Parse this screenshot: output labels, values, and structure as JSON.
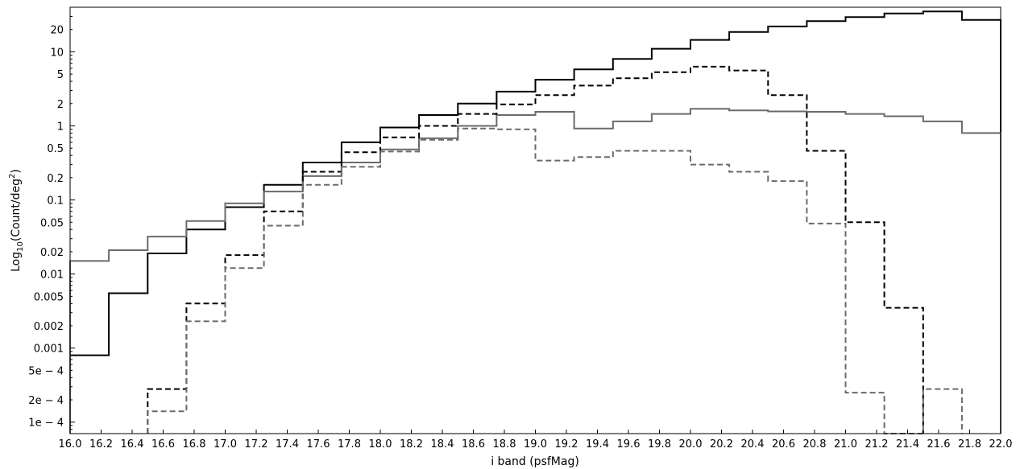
{
  "chart_data": {
    "type": "line",
    "step": true,
    "title": "",
    "xlabel": "i band (psfMag)",
    "ylabel": {
      "main": "Log",
      "sub": "10",
      "paren_open": "(Count/deg",
      "sup": "2",
      "paren_close": ")"
    },
    "xlim": [
      16.0,
      22.0
    ],
    "ylim": [
      7e-05,
      40
    ],
    "yscale": "log",
    "grid": false,
    "legend": "none",
    "x_ticks": [
      "16.0",
      "16.2",
      "16.4",
      "16.6",
      "16.8",
      "17.0",
      "17.2",
      "17.4",
      "17.6",
      "17.8",
      "18.0",
      "18.2",
      "18.4",
      "18.6",
      "18.8",
      "19.0",
      "19.2",
      "19.4",
      "19.6",
      "19.8",
      "20.0",
      "20.2",
      "20.4",
      "20.6",
      "20.8",
      "21.0",
      "21.2",
      "21.4",
      "21.6",
      "21.8",
      "22.0"
    ],
    "y_ticks": [
      {
        "value": 20,
        "label": "20"
      },
      {
        "value": 10,
        "label": "10"
      },
      {
        "value": 5,
        "label": "5"
      },
      {
        "value": 2,
        "label": "2"
      },
      {
        "value": 1,
        "label": "1"
      },
      {
        "value": 0.5,
        "label": "0.5"
      },
      {
        "value": 0.2,
        "label": "0.2"
      },
      {
        "value": 0.1,
        "label": "0.1"
      },
      {
        "value": 0.05,
        "label": "0.05"
      },
      {
        "value": 0.02,
        "label": "0.02"
      },
      {
        "value": 0.01,
        "label": "0.01"
      },
      {
        "value": 0.005,
        "label": "0.005"
      },
      {
        "value": 0.002,
        "label": "0.002"
      },
      {
        "value": 0.001,
        "label": "0.001"
      },
      {
        "value": 0.0005,
        "label": "5e − 4"
      },
      {
        "value": 0.0002,
        "label": "2e − 4"
      },
      {
        "value": 0.0001,
        "label": "1e − 4"
      }
    ],
    "bin_edges": [
      16.0,
      16.25,
      16.5,
      16.75,
      17.0,
      17.25,
      17.5,
      17.75,
      18.0,
      18.25,
      18.5,
      18.75,
      19.0,
      19.25,
      19.5,
      19.75,
      20.0,
      20.25,
      20.5,
      20.75,
      21.0,
      21.25,
      21.5,
      21.75,
      22.0
    ],
    "series": [
      {
        "style": "solid",
        "color": "#000000",
        "values": [
          0.0008,
          0.0055,
          0.019,
          0.04,
          0.08,
          0.16,
          0.32,
          0.6,
          0.95,
          1.4,
          2.0,
          2.9,
          4.2,
          5.8,
          8.0,
          11.0,
          14.5,
          18.5,
          22.0,
          26.0,
          29.5,
          33.0,
          35.0,
          27.0
        ]
      },
      {
        "style": "solid",
        "color": "#6a6a6a",
        "values": [
          0.015,
          0.021,
          0.032,
          0.052,
          0.09,
          0.13,
          0.21,
          0.32,
          0.48,
          0.68,
          1.0,
          1.4,
          1.55,
          0.92,
          1.15,
          1.45,
          1.7,
          1.62,
          1.57,
          1.55,
          1.45,
          1.35,
          1.15,
          0.8
        ]
      },
      {
        "style": "dashed",
        "color": "#000000",
        "values": [
          null,
          null,
          0.00028,
          0.004,
          0.018,
          0.07,
          0.24,
          0.44,
          0.7,
          1.0,
          1.45,
          1.95,
          2.6,
          3.5,
          4.4,
          5.3,
          6.3,
          5.6,
          2.6,
          0.46,
          0.05,
          0.0035,
          null,
          null
        ]
      },
      {
        "style": "dashed",
        "color": "#6a6a6a",
        "values": [
          null,
          null,
          0.00014,
          0.0023,
          0.012,
          0.045,
          0.16,
          0.28,
          0.45,
          0.65,
          0.92,
          0.9,
          0.34,
          0.38,
          0.46,
          0.46,
          0.3,
          0.24,
          0.18,
          0.048,
          0.00025,
          4.5e-05,
          0.00028,
          null
        ]
      }
    ]
  }
}
